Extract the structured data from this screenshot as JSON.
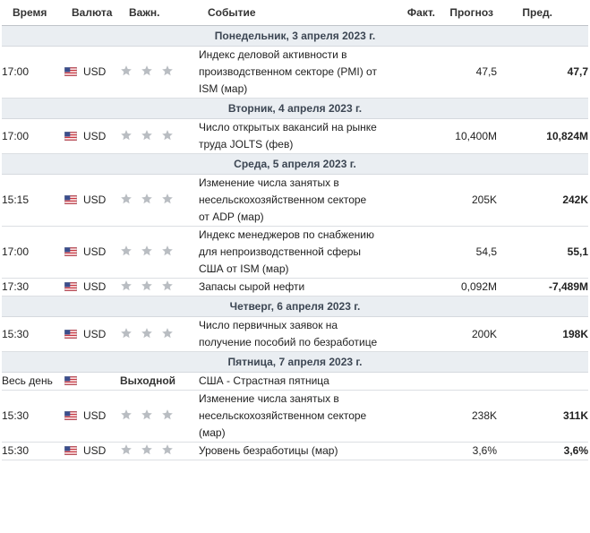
{
  "header": {
    "time": "Время",
    "currency": "Валюта",
    "importance": "Важн.",
    "event": "Событие",
    "actual": "Факт.",
    "forecast": "Прогноз",
    "previous": "Пред."
  },
  "days": [
    {
      "label": "Понедельник, 3 апреля 2023 г.",
      "events": [
        {
          "time": "17:00",
          "currency": "USD",
          "importance": 3,
          "event": "Индекс деловой активности в производственном секторе (PMI) от ISM (мар)",
          "actual": "",
          "forecast": "47,5",
          "previous": "47,7"
        }
      ]
    },
    {
      "label": "Вторник, 4 апреля 2023 г.",
      "events": [
        {
          "time": "17:00",
          "currency": "USD",
          "importance": 3,
          "event": "Число открытых вакансий на рынке труда JOLTS (фев)",
          "actual": "",
          "forecast": "10,400M",
          "previous": "10,824M"
        }
      ]
    },
    {
      "label": "Среда, 5 апреля 2023 г.",
      "events": [
        {
          "time": "15:15",
          "currency": "USD",
          "importance": 3,
          "event": "Изменение числа занятых в несельскохозяйственном секторе от ADP (мар)",
          "actual": "",
          "forecast": "205K",
          "previous": "242K"
        },
        {
          "time": "17:00",
          "currency": "USD",
          "importance": 3,
          "event": "Индекс менеджеров по снабжению для непроизводственной сферы США от ISM (мар)",
          "actual": "",
          "forecast": "54,5",
          "previous": "55,1"
        },
        {
          "time": "17:30",
          "currency": "USD",
          "importance": 3,
          "event": "Запасы сырой нефти",
          "actual": "",
          "forecast": "0,092M",
          "previous": "-7,489M"
        }
      ]
    },
    {
      "label": "Четверг, 6 апреля 2023 г.",
      "events": [
        {
          "time": "15:30",
          "currency": "USD",
          "importance": 3,
          "event": "Число первичных заявок на получение пособий по безработице",
          "actual": "",
          "forecast": "200K",
          "previous": "198K"
        }
      ]
    },
    {
      "label": "Пятница, 7 апреля 2023 г.",
      "events": [
        {
          "time": "Весь день",
          "currency": "",
          "importance": 0,
          "holiday": "Выходной",
          "event": "США - Страстная пятница",
          "actual": "",
          "forecast": "",
          "previous": ""
        },
        {
          "time": "15:30",
          "currency": "USD",
          "importance": 3,
          "event": "Изменение числа занятых в несельскохозяйственном секторе (мар)",
          "actual": "",
          "forecast": "238K",
          "previous": "311K"
        },
        {
          "time": "15:30",
          "currency": "USD",
          "importance": 3,
          "event": "Уровень безработицы (мар)",
          "actual": "",
          "forecast": "3,6%",
          "previous": "3,6%"
        }
      ]
    }
  ],
  "icons": {
    "flag": "us-flag-icon",
    "star": "star-icon"
  },
  "colors": {
    "day_row_bg": "#eaeef2",
    "star": "#b9bdc2"
  }
}
